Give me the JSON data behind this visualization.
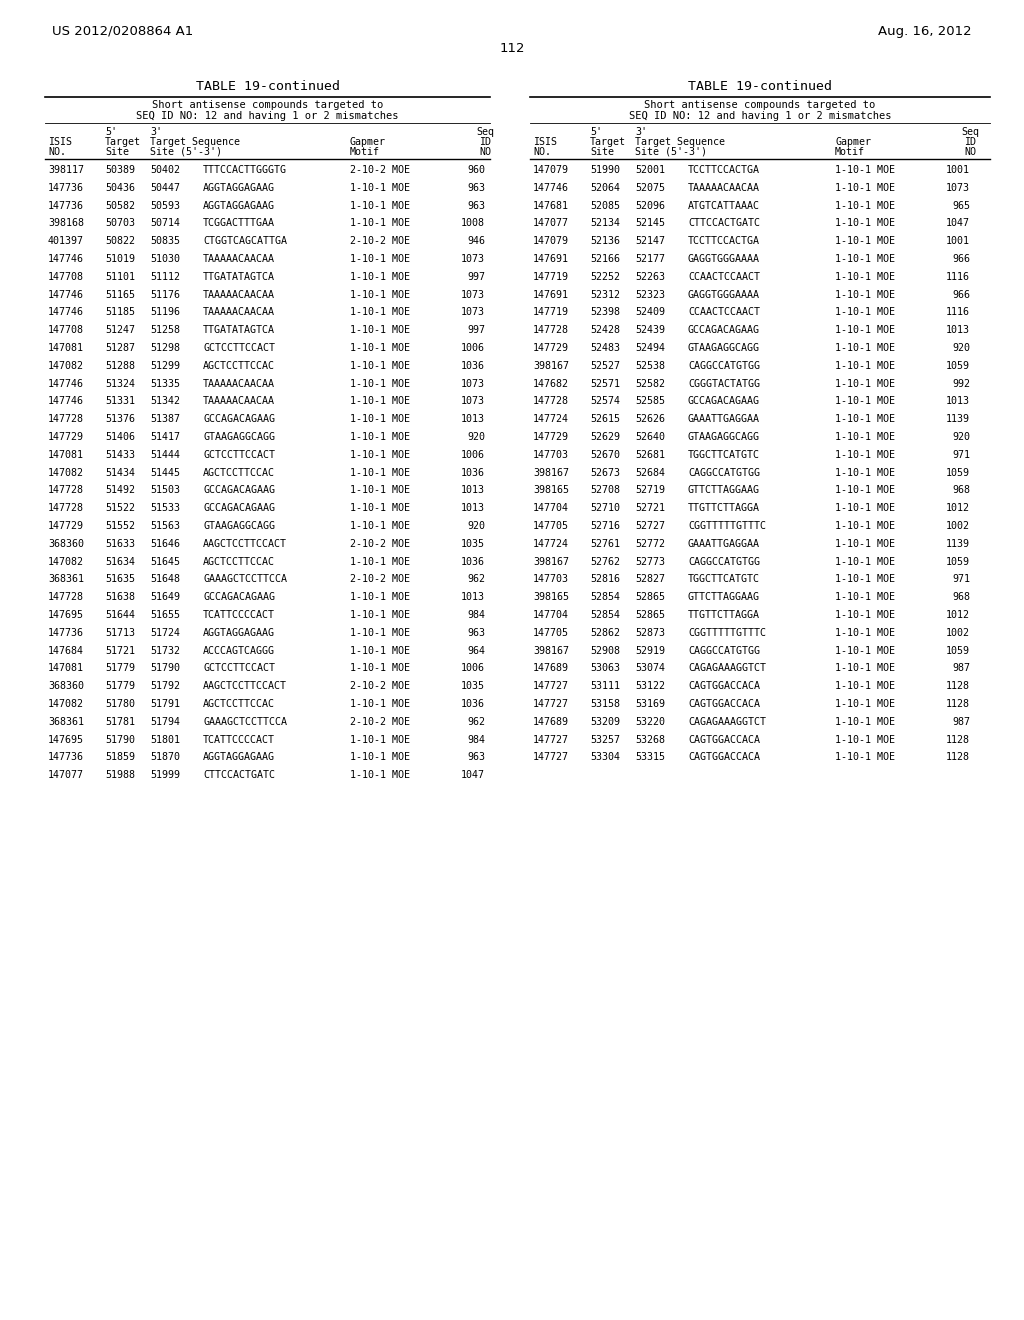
{
  "header_left": "US 2012/0208864 A1",
  "header_right": "Aug. 16, 2012",
  "page_number": "112",
  "table_title": "TABLE 19-continued",
  "table_subtitle1": "Short antisense compounds targeted to",
  "table_subtitle2": "SEQ ID NO: 12 and having 1 or 2 mismatches",
  "left_table": [
    [
      "398117",
      "50389",
      "50402",
      "TTTCCACTTGGGTG",
      "2-10-2 MOE",
      "960"
    ],
    [
      "147736",
      "50436",
      "50447",
      "AGGTAGGAGAAG",
      "1-10-1 MOE",
      "963"
    ],
    [
      "147736",
      "50582",
      "50593",
      "AGGTAGGAGAAG",
      "1-10-1 MOE",
      "963"
    ],
    [
      "398168",
      "50703",
      "50714",
      "TCGGACTTTGAA",
      "1-10-1 MOE",
      "1008"
    ],
    [
      "401397",
      "50822",
      "50835",
      "CTGGTCAGCATTGA",
      "2-10-2 MOE",
      "946"
    ],
    [
      "147746",
      "51019",
      "51030",
      "TAAAAACAACAA",
      "1-10-1 MOE",
      "1073"
    ],
    [
      "147708",
      "51101",
      "51112",
      "TTGATATAGTCA",
      "1-10-1 MOE",
      "997"
    ],
    [
      "147746",
      "51165",
      "51176",
      "TAAAAACAACAA",
      "1-10-1 MOE",
      "1073"
    ],
    [
      "147746",
      "51185",
      "51196",
      "TAAAAACAACAA",
      "1-10-1 MOE",
      "1073"
    ],
    [
      "147708",
      "51247",
      "51258",
      "TTGATATAGTCA",
      "1-10-1 MOE",
      "997"
    ],
    [
      "147081",
      "51287",
      "51298",
      "GCTCCTTCCACT",
      "1-10-1 MOE",
      "1006"
    ],
    [
      "147082",
      "51288",
      "51299",
      "AGCTCCTTCCAC",
      "1-10-1 MOE",
      "1036"
    ],
    [
      "147746",
      "51324",
      "51335",
      "TAAAAACAACAA",
      "1-10-1 MOE",
      "1073"
    ],
    [
      "147746",
      "51331",
      "51342",
      "TAAAAACAACAA",
      "1-10-1 MOE",
      "1073"
    ],
    [
      "147728",
      "51376",
      "51387",
      "GCCAGACAGAAG",
      "1-10-1 MOE",
      "1013"
    ],
    [
      "147729",
      "51406",
      "51417",
      "GTAAGAGGCAGG",
      "1-10-1 MOE",
      "920"
    ],
    [
      "147081",
      "51433",
      "51444",
      "GCTCCTTCCACT",
      "1-10-1 MOE",
      "1006"
    ],
    [
      "147082",
      "51434",
      "51445",
      "AGCTCCTTCCAC",
      "1-10-1 MOE",
      "1036"
    ],
    [
      "147728",
      "51492",
      "51503",
      "GCCAGACAGAAG",
      "1-10-1 MOE",
      "1013"
    ],
    [
      "147728",
      "51522",
      "51533",
      "GCCAGACAGAAG",
      "1-10-1 MOE",
      "1013"
    ],
    [
      "147729",
      "51552",
      "51563",
      "GTAAGAGGCAGG",
      "1-10-1 MOE",
      "920"
    ],
    [
      "368360",
      "51633",
      "51646",
      "AAGCTCCTTCCACT",
      "2-10-2 MOE",
      "1035"
    ],
    [
      "147082",
      "51634",
      "51645",
      "AGCTCCTTCCAC",
      "1-10-1 MOE",
      "1036"
    ],
    [
      "368361",
      "51635",
      "51648",
      "GAAAGCTCCTTCCA",
      "2-10-2 MOE",
      "962"
    ],
    [
      "147728",
      "51638",
      "51649",
      "GCCAGACAGAAG",
      "1-10-1 MOE",
      "1013"
    ],
    [
      "147695",
      "51644",
      "51655",
      "TCATTCCCCACT",
      "1-10-1 MOE",
      "984"
    ],
    [
      "147736",
      "51713",
      "51724",
      "AGGTAGGAGAAG",
      "1-10-1 MOE",
      "963"
    ],
    [
      "147684",
      "51721",
      "51732",
      "ACCCAGTCAGGG",
      "1-10-1 MOE",
      "964"
    ],
    [
      "147081",
      "51779",
      "51790",
      "GCTCCTTCCACT",
      "1-10-1 MOE",
      "1006"
    ],
    [
      "368360",
      "51779",
      "51792",
      "AAGCTCCTTCCACT",
      "2-10-2 MOE",
      "1035"
    ],
    [
      "147082",
      "51780",
      "51791",
      "AGCTCCTTCCAC",
      "1-10-1 MOE",
      "1036"
    ],
    [
      "368361",
      "51781",
      "51794",
      "GAAAGCTCCTTCCA",
      "2-10-2 MOE",
      "962"
    ],
    [
      "147695",
      "51790",
      "51801",
      "TCATTCCCCACT",
      "1-10-1 MOE",
      "984"
    ],
    [
      "147736",
      "51859",
      "51870",
      "AGGTAGGAGAAG",
      "1-10-1 MOE",
      "963"
    ],
    [
      "147077",
      "51988",
      "51999",
      "CTTCCACTGATC",
      "1-10-1 MOE",
      "1047"
    ]
  ],
  "right_table": [
    [
      "147079",
      "51990",
      "52001",
      "TCCTTCCACTGA",
      "1-10-1 MOE",
      "1001"
    ],
    [
      "147746",
      "52064",
      "52075",
      "TAAAAACAACAA",
      "1-10-1 MOE",
      "1073"
    ],
    [
      "147681",
      "52085",
      "52096",
      "ATGTCATTAAAC",
      "1-10-1 MOE",
      "965"
    ],
    [
      "147077",
      "52134",
      "52145",
      "CTTCCACTGATC",
      "1-10-1 MOE",
      "1047"
    ],
    [
      "147079",
      "52136",
      "52147",
      "TCCTTCCACTGA",
      "1-10-1 MOE",
      "1001"
    ],
    [
      "147691",
      "52166",
      "52177",
      "GAGGTGGGAAAA",
      "1-10-1 MOE",
      "966"
    ],
    [
      "147719",
      "52252",
      "52263",
      "CCAACTCCAACT",
      "1-10-1 MOE",
      "1116"
    ],
    [
      "147691",
      "52312",
      "52323",
      "GAGGTGGGAAAA",
      "1-10-1 MOE",
      "966"
    ],
    [
      "147719",
      "52398",
      "52409",
      "CCAACTCCAACT",
      "1-10-1 MOE",
      "1116"
    ],
    [
      "147728",
      "52428",
      "52439",
      "GCCAGACAGAAG",
      "1-10-1 MOE",
      "1013"
    ],
    [
      "147729",
      "52483",
      "52494",
      "GTAAGAGGCAGG",
      "1-10-1 MOE",
      "920"
    ],
    [
      "398167",
      "52527",
      "52538",
      "CAGGCCATGTGG",
      "1-10-1 MOE",
      "1059"
    ],
    [
      "147682",
      "52571",
      "52582",
      "CGGGTACTATGG",
      "1-10-1 MOE",
      "992"
    ],
    [
      "147728",
      "52574",
      "52585",
      "GCCAGACAGAAG",
      "1-10-1 MOE",
      "1013"
    ],
    [
      "147724",
      "52615",
      "52626",
      "GAAATTGAGGAA",
      "1-10-1 MOE",
      "1139"
    ],
    [
      "147729",
      "52629",
      "52640",
      "GTAAGAGGCAGG",
      "1-10-1 MOE",
      "920"
    ],
    [
      "147703",
      "52670",
      "52681",
      "TGGCTTCATGTC",
      "1-10-1 MOE",
      "971"
    ],
    [
      "398167",
      "52673",
      "52684",
      "CAGGCCATGTGG",
      "1-10-1 MOE",
      "1059"
    ],
    [
      "398165",
      "52708",
      "52719",
      "GTTCTTAGGAAG",
      "1-10-1 MOE",
      "968"
    ],
    [
      "147704",
      "52710",
      "52721",
      "TTGTTCTTAGGA",
      "1-10-1 MOE",
      "1012"
    ],
    [
      "147705",
      "52716",
      "52727",
      "CGGTTTTTGTTTC",
      "1-10-1 MOE",
      "1002"
    ],
    [
      "147724",
      "52761",
      "52772",
      "GAAATTGAGGAA",
      "1-10-1 MOE",
      "1139"
    ],
    [
      "398167",
      "52762",
      "52773",
      "CAGGCCATGTGG",
      "1-10-1 MOE",
      "1059"
    ],
    [
      "147703",
      "52816",
      "52827",
      "TGGCTTCATGTC",
      "1-10-1 MOE",
      "971"
    ],
    [
      "398165",
      "52854",
      "52865",
      "GTTCTTAGGAAG",
      "1-10-1 MOE",
      "968"
    ],
    [
      "147704",
      "52854",
      "52865",
      "TTGTTCTTAGGA",
      "1-10-1 MOE",
      "1012"
    ],
    [
      "147705",
      "52862",
      "52873",
      "CGGTTTTTGTTTC",
      "1-10-1 MOE",
      "1002"
    ],
    [
      "398167",
      "52908",
      "52919",
      "CAGGCCATGTGG",
      "1-10-1 MOE",
      "1059"
    ],
    [
      "147689",
      "53063",
      "53074",
      "CAGAGAAAGGTCT",
      "1-10-1 MOE",
      "987"
    ],
    [
      "147727",
      "53111",
      "53122",
      "CAGTGGACCACA",
      "1-10-1 MOE",
      "1128"
    ],
    [
      "147727",
      "53158",
      "53169",
      "CAGTGGACCACA",
      "1-10-1 MOE",
      "1128"
    ],
    [
      "147689",
      "53209",
      "53220",
      "CAGAGAAAGGTCT",
      "1-10-1 MOE",
      "987"
    ],
    [
      "147727",
      "53257",
      "53268",
      "CAGTGGACCACA",
      "1-10-1 MOE",
      "1128"
    ],
    [
      "147727",
      "53304",
      "53315",
      "CAGTGGACCACA",
      "1-10-1 MOE",
      "1128"
    ]
  ],
  "bg_color": "#ffffff",
  "text_color": "#000000"
}
